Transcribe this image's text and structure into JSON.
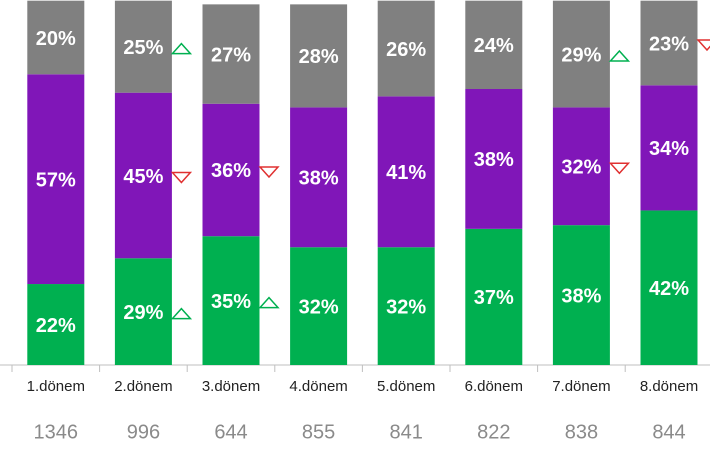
{
  "chart_data": {
    "type": "stacked_bar",
    "categories": [
      "1.dönem",
      "2.dönem",
      "3.dönem",
      "4.dönem",
      "5.dönem",
      "6.dönem",
      "7.dönem",
      "8.dönem"
    ],
    "counts": [
      1346,
      996,
      644,
      855,
      841,
      822,
      838,
      844
    ],
    "ylim": [
      0,
      100
    ],
    "series": [
      {
        "color": "#00b050",
        "values": [
          22,
          29,
          35,
          32,
          32,
          37,
          38,
          42
        ],
        "value_labels": [
          "22%",
          "29%",
          "35%",
          "32%",
          "32%",
          "37%",
          "38%",
          "42%"
        ]
      },
      {
        "color": "#8016b8",
        "values": [
          57,
          45,
          36,
          38,
          41,
          38,
          32,
          34
        ],
        "value_labels": [
          "57%",
          "45%",
          "36%",
          "38%",
          "41%",
          "38%",
          "32%",
          "34%"
        ]
      },
      {
        "color": "#808080",
        "values": [
          20,
          25,
          27,
          28,
          26,
          24,
          29,
          23
        ],
        "value_labels": [
          "20%",
          "25%",
          "27%",
          "28%",
          "26%",
          "24%",
          "29%",
          "23%"
        ]
      }
    ],
    "trend_markers": [
      {
        "series": 2,
        "index": 1,
        "direction": "up"
      },
      {
        "series": 1,
        "index": 1,
        "direction": "down"
      },
      {
        "series": 0,
        "index": 1,
        "direction": "up"
      },
      {
        "series": 1,
        "index": 2,
        "direction": "down"
      },
      {
        "series": 0,
        "index": 2,
        "direction": "up"
      },
      {
        "series": 2,
        "index": 6,
        "direction": "up"
      },
      {
        "series": 1,
        "index": 6,
        "direction": "down"
      },
      {
        "series": 2,
        "index": 7,
        "direction": "down"
      }
    ]
  }
}
